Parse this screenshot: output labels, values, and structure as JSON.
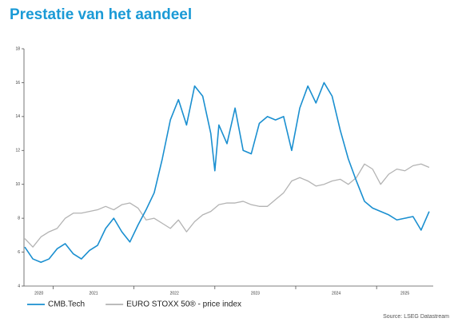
{
  "chart_data": {
    "type": "line",
    "title": "Prestatie van het aandeel",
    "source": "Source: LSEG Datastream",
    "x": [
      2020.65,
      2020.75,
      2020.85,
      2020.95,
      2021.05,
      2021.15,
      2021.25,
      2021.35,
      2021.45,
      2021.55,
      2021.65,
      2021.75,
      2021.85,
      2021.95,
      2022.05,
      2022.15,
      2022.25,
      2022.35,
      2022.45,
      2022.55,
      2022.65,
      2022.75,
      2022.85,
      2022.95,
      2023.0,
      2023.05,
      2023.15,
      2023.25,
      2023.35,
      2023.45,
      2023.55,
      2023.65,
      2023.75,
      2023.85,
      2023.95,
      2024.05,
      2024.15,
      2024.25,
      2024.35,
      2024.45,
      2024.55,
      2024.65,
      2024.75,
      2024.85,
      2024.95,
      2025.05,
      2025.15,
      2025.25,
      2025.35,
      2025.45,
      2025.55,
      2025.65
    ],
    "series": [
      {
        "name": "CMB.Tech",
        "color": "#1a8fd0",
        "values": [
          6.3,
          5.6,
          5.4,
          5.6,
          6.2,
          6.5,
          5.9,
          5.6,
          6.1,
          6.4,
          7.4,
          8.0,
          7.2,
          6.6,
          7.6,
          8.5,
          9.5,
          11.5,
          13.8,
          15.0,
          13.5,
          15.8,
          15.2,
          13.0,
          10.8,
          13.5,
          12.4,
          14.5,
          12.0,
          11.8,
          13.6,
          14.0,
          13.8,
          14.0,
          12.0,
          14.5,
          15.8,
          14.8,
          16.0,
          15.2,
          13.2,
          11.5,
          10.2,
          9.0,
          8.6,
          8.4,
          8.2,
          7.9,
          8.0,
          8.1,
          7.3,
          8.4
        ]
      },
      {
        "name": "EURO STOXX 50® - price index",
        "color": "#b3b3b3",
        "values": [
          6.8,
          6.3,
          6.9,
          7.2,
          7.4,
          8.0,
          8.3,
          8.3,
          8.4,
          8.5,
          8.7,
          8.5,
          8.8,
          8.9,
          8.6,
          7.9,
          8.0,
          7.7,
          7.4,
          7.9,
          7.2,
          7.8,
          8.2,
          8.4,
          8.6,
          8.8,
          8.9,
          8.9,
          9.0,
          8.8,
          8.7,
          8.7,
          9.1,
          9.5,
          10.2,
          10.4,
          10.2,
          9.9,
          10.0,
          10.2,
          10.3,
          10.0,
          10.4,
          11.2,
          10.9,
          10.0,
          10.6,
          10.9,
          10.8,
          11.1,
          11.2,
          11.0
        ]
      }
    ],
    "xlim": [
      2020.65,
      2025.7
    ],
    "xticks": [
      2020,
      2021,
      2022,
      2023,
      2024,
      2025
    ],
    "ylim": [
      4,
      18
    ],
    "yticks": [
      4,
      6,
      8,
      10,
      12,
      14,
      16,
      18
    ],
    "legend": "bottom-left"
  }
}
